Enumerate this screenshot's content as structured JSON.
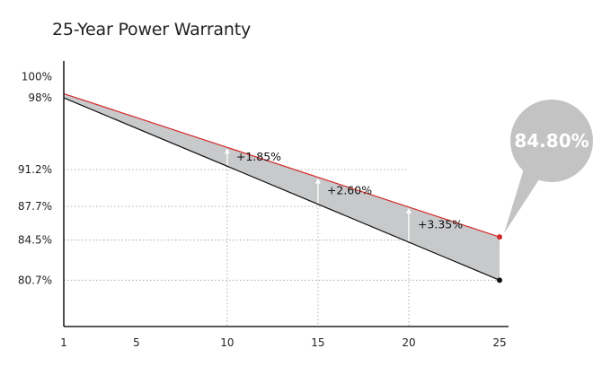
{
  "title": "25-Year Power Warranty",
  "chart_data": {
    "type": "line",
    "title": "25-Year Power Warranty",
    "xlabel": "",
    "ylabel": "",
    "x_ticks": [
      1,
      5,
      10,
      15,
      20,
      25
    ],
    "y_ticks": [
      {
        "value": 100,
        "label": "100%"
      },
      {
        "value": 98,
        "label": "98%"
      },
      {
        "value": 91.2,
        "label": "91.2%"
      },
      {
        "value": 87.7,
        "label": "87.7%"
      },
      {
        "value": 84.5,
        "label": "84.5%"
      },
      {
        "value": 80.7,
        "label": "80.7%"
      }
    ],
    "xlim": [
      1,
      25
    ],
    "ylim": [
      76.3,
      101.5
    ],
    "series": [
      {
        "color": "#d42a2a",
        "x": [
          1,
          25
        ],
        "y": [
          98.4,
          84.8
        ]
      },
      {
        "color": "#111111",
        "x": [
          1,
          25
        ],
        "y": [
          98,
          80.7
        ]
      }
    ],
    "gap_annotations": [
      {
        "x": 10,
        "label": "+1.85%"
      },
      {
        "x": 15,
        "label": "+2.60%"
      },
      {
        "x": 20,
        "label": "+3.35%"
      }
    ],
    "callout": {
      "label": "84.80%",
      "x": 25,
      "y": 84.8
    },
    "grid": "dotted at y ticks and annotated x values",
    "colors": {
      "fill": "#c8c9cb",
      "upper_line": "#d42a2a",
      "lower_line": "#111111",
      "bubble": "#c3c3c3",
      "axis": "#222222"
    }
  }
}
